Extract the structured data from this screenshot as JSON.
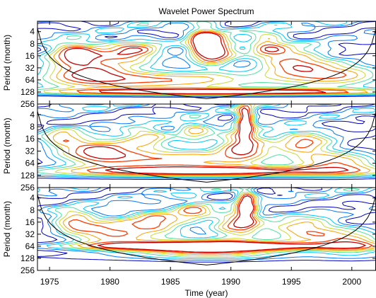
{
  "chart_data": {
    "type": "heatmap",
    "title": "Wavelet Power Spectrum",
    "xlabel": "Time (year)",
    "ylabel": "Period (month)",
    "xlim": [
      1974,
      2002
    ],
    "xticks": [
      1975,
      1980,
      1985,
      1990,
      1995,
      2000
    ],
    "xtick_labels": [
      "1975",
      "1980",
      "1985",
      "1990",
      "1995",
      "2000"
    ],
    "y_scale": "log2",
    "ylim": [
      2.2,
      256
    ],
    "yticks": [
      4,
      8,
      16,
      32,
      64,
      128,
      256
    ],
    "ytick_labels": [
      "4",
      "8",
      "16",
      "32",
      "64",
      "128",
      "256"
    ],
    "colormap": "jet",
    "contour_colors": [
      "#0000c8",
      "#0078ff",
      "#00c8ff",
      "#50e0a0",
      "#c8dc30",
      "#ffa000",
      "#ff3c00",
      "#c80000"
    ],
    "panels": [
      {
        "ylabel": "Period (month)",
        "cone_of_influence": "black curve",
        "features": [
          {
            "t": 1988.5,
            "p": 12,
            "dt": 1.8,
            "dp": 0.55,
            "h": 1.0
          },
          {
            "t": 1987.8,
            "p": 6,
            "dt": 1.2,
            "dp": 0.5,
            "h": 0.7
          },
          {
            "t": 1989.0,
            "p": 128,
            "dt": 14,
            "dp": 0.12,
            "h": 1.0
          },
          {
            "t": 1984,
            "p": 64,
            "dt": 10,
            "dp": 0.35,
            "h": 0.8
          },
          {
            "t": 1978,
            "p": 30,
            "dt": 3.5,
            "dp": 0.6,
            "h": 0.75
          },
          {
            "t": 1995,
            "p": 22,
            "dt": 3.0,
            "dp": 0.6,
            "h": 0.7
          },
          {
            "t": 1982,
            "p": 13,
            "dt": 2.5,
            "dp": 0.45,
            "h": 0.7
          },
          {
            "t": 1999,
            "p": 48,
            "dt": 4.0,
            "dp": 0.45,
            "h": 0.7
          },
          {
            "t": 1977,
            "p": 12,
            "dt": 2.0,
            "dp": 0.4,
            "h": 0.6
          },
          {
            "t": 1993,
            "p": 8,
            "dt": 1.5,
            "dp": 0.45,
            "h": 0.55
          }
        ]
      },
      {
        "ylabel": "Period (month)",
        "cone_of_influence": "black curve",
        "features": [
          {
            "t": 1991.2,
            "p": 5.5,
            "dt": 0.7,
            "dp": 0.6,
            "h": 0.95
          },
          {
            "t": 1991.0,
            "p": 22,
            "dt": 2.0,
            "dp": 0.55,
            "h": 0.8
          },
          {
            "t": 1988,
            "p": 100,
            "dt": 14,
            "dp": 0.2,
            "h": 0.85
          },
          {
            "t": 1985,
            "p": 50,
            "dt": 8,
            "dp": 0.4,
            "h": 0.75
          },
          {
            "t": 1996,
            "p": 20,
            "dt": 2.5,
            "dp": 0.5,
            "h": 0.7
          },
          {
            "t": 1979,
            "p": 30,
            "dt": 3.0,
            "dp": 0.5,
            "h": 0.7
          },
          {
            "t": 1983,
            "p": 14,
            "dt": 2.0,
            "dp": 0.4,
            "h": 0.6
          },
          {
            "t": 1999,
            "p": 60,
            "dt": 3.5,
            "dp": 0.4,
            "h": 0.7
          },
          {
            "t": 1976,
            "p": 15,
            "dt": 1.8,
            "dp": 0.4,
            "h": 0.55
          },
          {
            "t": 1987,
            "p": 10,
            "dt": 1.5,
            "dp": 0.4,
            "h": 0.55
          }
        ]
      },
      {
        "ylabel": "Period (month)",
        "cone_of_influence": "black curve",
        "features": [
          {
            "t": 1988.2,
            "p": 70,
            "dt": 6,
            "dp": 0.35,
            "h": 0.9
          },
          {
            "t": 1991.3,
            "p": 6,
            "dt": 0.8,
            "dp": 0.6,
            "h": 0.95
          },
          {
            "t": 1988,
            "p": 64,
            "dt": 14,
            "dp": 0.15,
            "h": 0.85
          },
          {
            "t": 1990.5,
            "p": 18,
            "dt": 2.0,
            "dp": 0.5,
            "h": 0.75
          },
          {
            "t": 1980,
            "p": 30,
            "dt": 3.5,
            "dp": 0.5,
            "h": 0.75
          },
          {
            "t": 1984,
            "p": 16,
            "dt": 2.5,
            "dp": 0.45,
            "h": 0.65
          },
          {
            "t": 1996,
            "p": 24,
            "dt": 3.0,
            "dp": 0.5,
            "h": 0.7
          },
          {
            "t": 1977,
            "p": 14,
            "dt": 1.8,
            "dp": 0.45,
            "h": 0.6
          },
          {
            "t": 2000,
            "p": 50,
            "dt": 3.0,
            "dp": 0.45,
            "h": 0.7
          },
          {
            "t": 1987,
            "p": 8,
            "dt": 1.5,
            "dp": 0.4,
            "h": 0.55
          }
        ]
      }
    ]
  }
}
